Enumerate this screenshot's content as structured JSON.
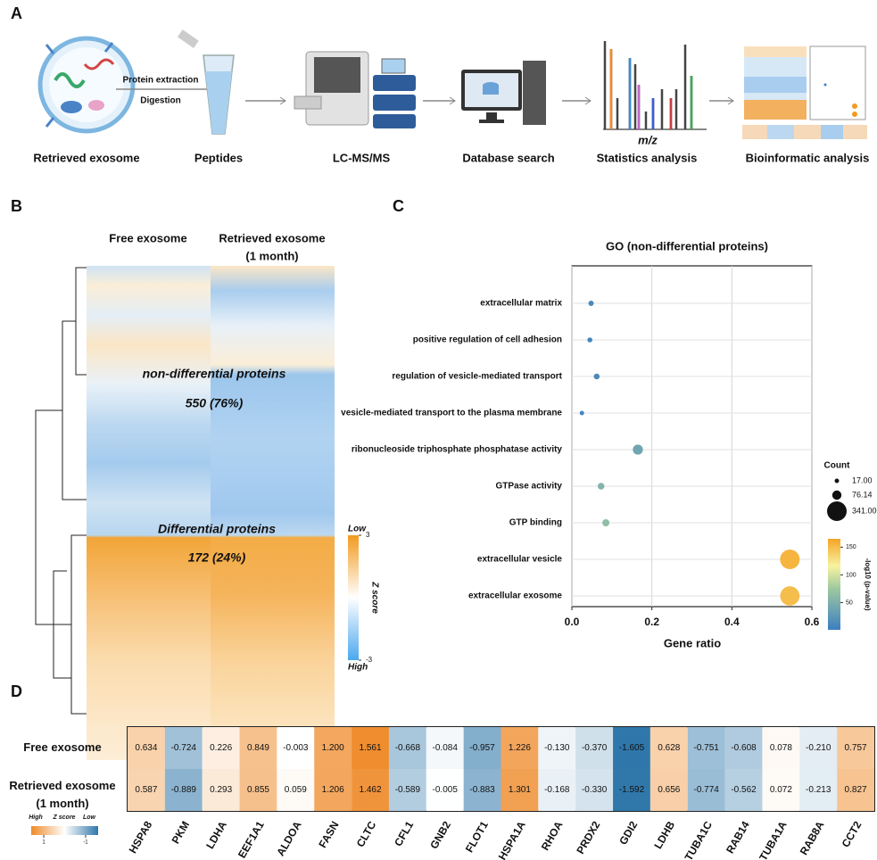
{
  "panel_labels": [
    "A",
    "B",
    "C",
    "D"
  ],
  "workflow": {
    "steps": [
      "Retrieved exosome",
      "Peptides",
      "LC-MS/MS",
      "Database search",
      "Statistics analysis",
      "Bioinformatic analysis"
    ],
    "arrow_labels": [
      "Protein extraction",
      "Digestion"
    ],
    "axis_label": "m/z"
  },
  "chart_data": [
    {
      "type": "heatmap",
      "columns": [
        [
          "Free exosome"
        ],
        [
          "Retrieved exosome",
          "(1 month)"
        ]
      ],
      "annotations": [
        "non-differential proteins",
        "550 (76%)",
        "Differential proteins",
        "172 (24%)"
      ],
      "colorbar_label": "Z score",
      "colorbar_ends": [
        "Low",
        "High"
      ],
      "colorbar_lim": [
        -3,
        3
      ],
      "colorbar_ticks": [
        3,
        -3
      ]
    },
    {
      "type": "scatter",
      "title": "GO (non-differential proteins)",
      "xlabel": "Gene ratio",
      "categories": [
        "extracellular matrix",
        "positive regulation of cell adhesion",
        "regulation of vesicle-mediated transport",
        "vesicle-mediated transport to the plasma membrane",
        "ribonucleoside triphosphate phosphatase activity",
        "GTPase activity",
        "GTP binding",
        "extracellular vesicle",
        "extracellular exosome"
      ],
      "values": [
        0.048,
        0.045,
        0.062,
        0.025,
        0.165,
        0.073,
        0.085,
        0.545,
        0.545
      ],
      "sizes": [
        25,
        22,
        30,
        17,
        90,
        40,
        45,
        341,
        330
      ],
      "color_values": [
        10,
        8,
        12,
        5,
        40,
        55,
        65,
        155,
        150
      ],
      "xlim": [
        0,
        0.6
      ],
      "xticks": [
        {
          "value": 0,
          "label": "0.0"
        },
        0.2,
        0.4,
        0.6
      ],
      "grid": true,
      "size_legend_title": "Count",
      "size_legend": [
        {
          "value": 17,
          "label": "17.00"
        },
        {
          "value": 76.14,
          "label": "76.14"
        },
        {
          "value": 341,
          "label": "341.00"
        }
      ],
      "colorbar_label": "-log10 (p-value)",
      "colorbar_lim": [
        1,
        165
      ],
      "colorbar_ticks": [
        50,
        100,
        150
      ]
    },
    {
      "type": "heatmap",
      "categories": [
        "HSPA8",
        "PKM",
        "LDHA",
        "EEF1A1",
        "ALDOA",
        "FASN",
        "CLTC",
        "CFL1",
        "GNB2",
        "FLOT1",
        "HSPA1A",
        "RHOA",
        "PRDX2",
        "GDI2",
        "LDHB",
        "TUBA1C",
        "RAB14",
        "TUBA1A",
        "RAB8A",
        "CCT2"
      ],
      "series": [
        {
          "name": [
            "Free exosome"
          ],
          "values": [
            0.634,
            -0.724,
            0.226,
            0.849,
            -0.003,
            1.2,
            1.561,
            -0.668,
            -0.084,
            -0.957,
            1.226,
            -0.13,
            -0.37,
            -1.605,
            0.628,
            -0.751,
            -0.608,
            0.078,
            -0.21,
            0.757
          ],
          "value_labels": [
            "0.634",
            "-0.724",
            "0.226",
            "0.849",
            "-0.003",
            "1.200",
            "1.561",
            "-0.668",
            "-0.084",
            "-0.957",
            "1.226",
            "-0.130",
            "-0.370",
            "-1.605",
            "0.628",
            "-0.751",
            "-0.608",
            "0.078",
            "-0.210",
            "0.757"
          ]
        },
        {
          "name": [
            "Retrieved exosome",
            "(1 month)"
          ],
          "values": [
            0.587,
            -0.889,
            0.293,
            0.855,
            0.059,
            1.206,
            1.462,
            -0.589,
            -0.005,
            -0.883,
            1.301,
            -0.168,
            -0.33,
            -1.592,
            0.656,
            -0.774,
            -0.562,
            0.072,
            -0.213,
            0.827
          ],
          "value_labels": [
            "0.587",
            "-0.889",
            "0.293",
            "0.855",
            "0.059",
            "1.206",
            "1.462",
            "-0.589",
            "-0.005",
            "-0.883",
            "1.301",
            "-0.168",
            "-0.330",
            "-1.592",
            "0.656",
            "-0.774",
            "-0.562",
            "0.072",
            "-0.213",
            "0.827"
          ]
        }
      ],
      "zlim": [
        -1.6,
        1.6
      ],
      "colorbar_labels": [
        "High",
        "Z score",
        "Low"
      ],
      "colorbar_ticks": [
        1,
        -1
      ]
    }
  ]
}
